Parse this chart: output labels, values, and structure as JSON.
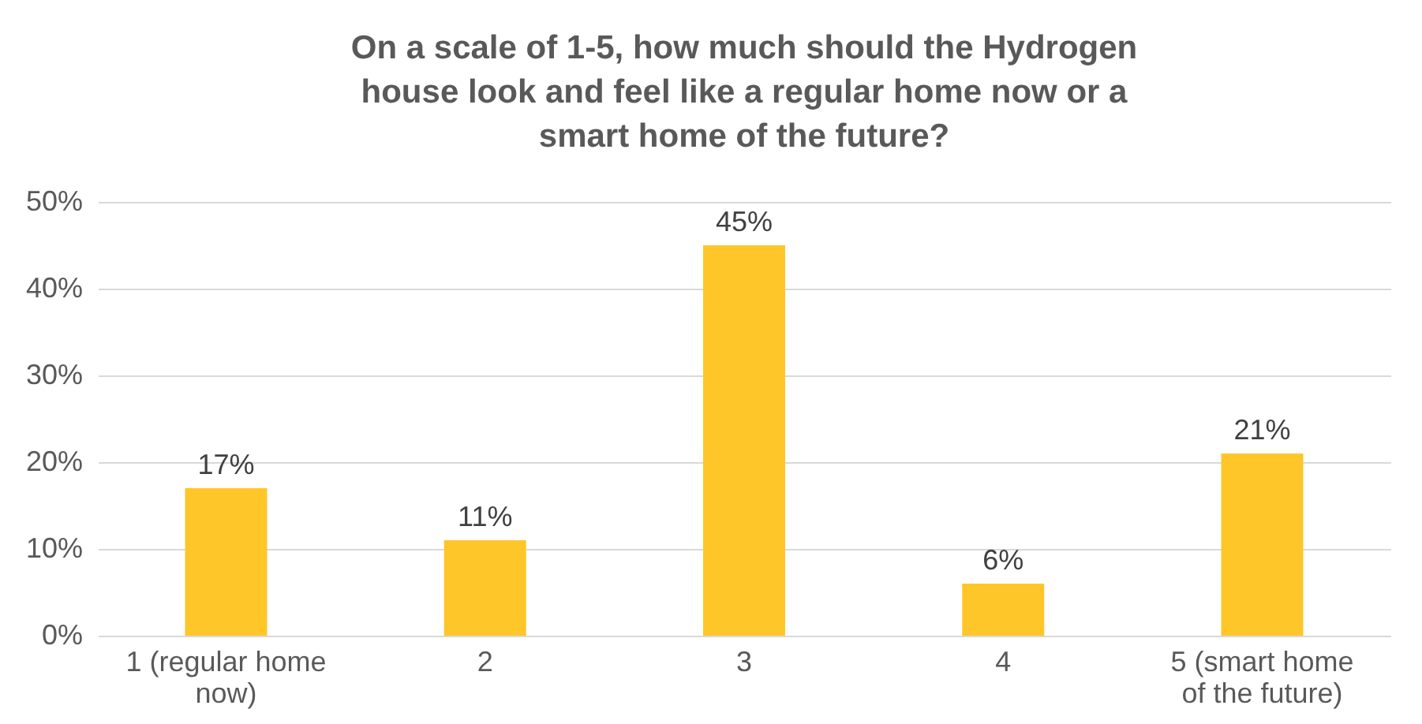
{
  "chart_data": {
    "type": "bar",
    "title": "On a scale of 1-5, how much should the Hydrogen house look and feel like a regular home now or a smart home of the future?",
    "categories": [
      "1 (regular home now)",
      "2",
      "3",
      "4",
      "5 (smart home of the future)"
    ],
    "values": [
      17,
      11,
      45,
      6,
      21
    ],
    "value_labels": [
      "17%",
      "11%",
      "45%",
      "6%",
      "21%"
    ],
    "color": "#ffc62a",
    "ylim": [
      0,
      50
    ],
    "yticks": [
      {
        "value": 0,
        "label": "0%"
      },
      {
        "value": 10,
        "label": "10%"
      },
      {
        "value": 20,
        "label": "20%"
      },
      {
        "value": 30,
        "label": "30%"
      },
      {
        "value": 40,
        "label": "40%"
      },
      {
        "value": 50,
        "label": "50%"
      }
    ],
    "grid": "y"
  }
}
